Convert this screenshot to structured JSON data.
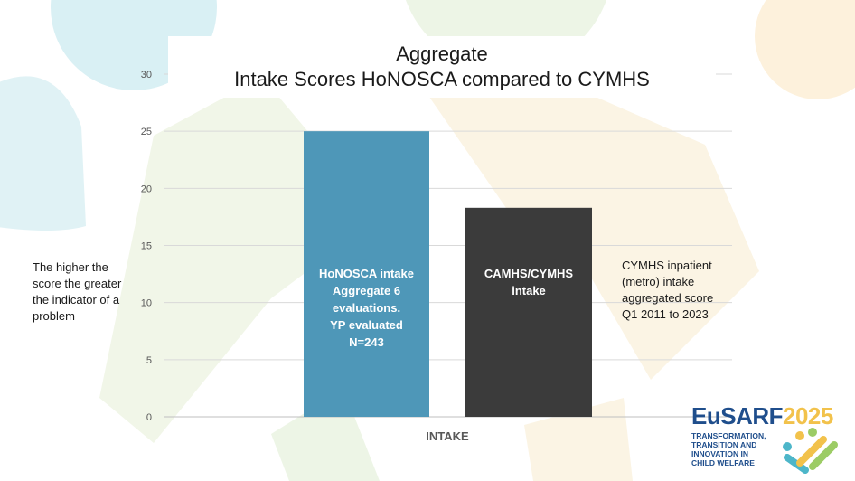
{
  "chart_data": {
    "type": "bar",
    "title": "Aggregate\nIntake Scores HoNOSCA compared to CYMHS",
    "categories": [
      "INTAKE"
    ],
    "xlabel": "INTAKE",
    "ylabel": "",
    "ylim": [
      0,
      30
    ],
    "yticks": [
      "0",
      "5",
      "10",
      "15",
      "20",
      "25",
      "30"
    ],
    "series": [
      {
        "name": "HoNOSCA intake Aggregate 6 evaluations. YP evaluated N=243",
        "values": [
          25
        ],
        "color": "#4e97b8"
      },
      {
        "name": "CAMHS/CYMHS intake",
        "values": [
          18.3
        ],
        "color": "#3b3b3b"
      }
    ],
    "grid": true,
    "legend": "none"
  },
  "notes": {
    "left": "The higher the score the greater the indicator of a problem",
    "right": "CYMHS inpatient (metro) intake aggregated score Q1 2011 to 2023"
  },
  "bar_labels": {
    "honosca": [
      "HoNOSCA intake",
      "Aggregate 6",
      "evaluations.",
      "YP evaluated",
      "N=243"
    ],
    "cymhs": [
      "CAMHS/CYMHS",
      "intake"
    ]
  },
  "logo": {
    "name_part1": "EuSARF",
    "name_part2": "2025",
    "tagline": [
      "TRANSFORMATION,",
      "TRANSITION AND",
      "INNOVATION IN",
      "CHILD WELFARE"
    ]
  },
  "colors": {
    "honosca_bar": "#4e97b8",
    "cymhs_bar": "#3b3b3b",
    "logo_blue": "#1f4e8c",
    "logo_yellow": "#f2c24b",
    "logo_teal": "#4db6c9"
  }
}
